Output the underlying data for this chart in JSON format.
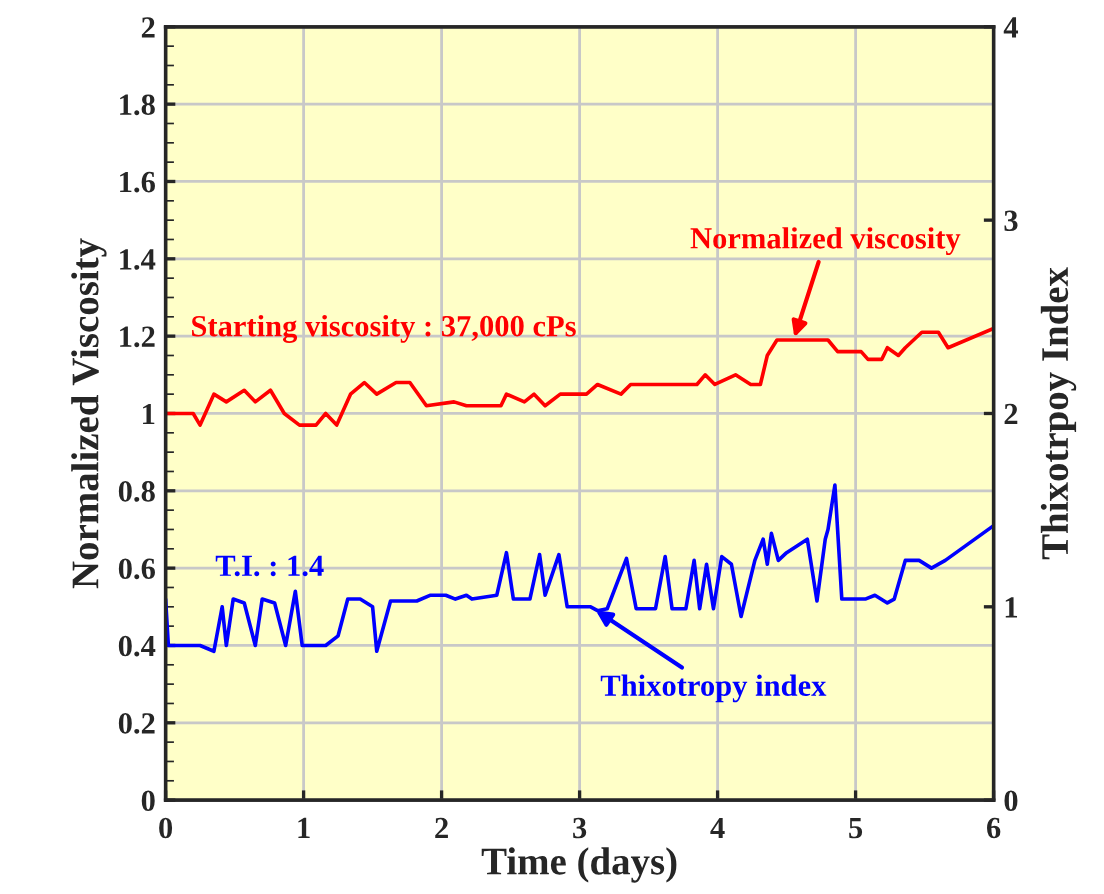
{
  "chart_data": {
    "type": "line",
    "xlabel": "Time (days)",
    "ylabel": "Normalized Viscosity",
    "y2label": "Thixotrpoy Index",
    "xlim": [
      0,
      6
    ],
    "xticks": [
      0,
      1,
      2,
      3,
      4,
      5,
      6
    ],
    "ylim": [
      0,
      2
    ],
    "yticks": [
      0,
      0.2,
      0.4,
      0.6,
      0.8,
      1,
      1.2,
      1.4,
      1.6,
      1.8,
      2
    ],
    "y2lim": [
      0,
      4
    ],
    "y2ticks": [
      0,
      1,
      2,
      3,
      4
    ],
    "grid": true,
    "marker": "none",
    "line_style": "solid",
    "series": [
      {
        "color": "#ff0000",
        "x": [
          0,
          0.2,
          0.25,
          0.35,
          0.44,
          0.57,
          0.65,
          0.76,
          0.86,
          0.97,
          1.09,
          1.16,
          1.24,
          1.34,
          1.44,
          1.53,
          1.67,
          1.77,
          1.89,
          2.09,
          2.18,
          2.43,
          2.47,
          2.6,
          2.67,
          2.75,
          2.86,
          3.05,
          3.13,
          3.3,
          3.37,
          3.85,
          3.91,
          3.98,
          4.13,
          4.24,
          4.31,
          4.36,
          4.43,
          4.8,
          4.87,
          5.04,
          5.09,
          5.19,
          5.23,
          5.31,
          5.36,
          5.48,
          5.6,
          5.67,
          6.0
        ],
        "values": [
          1.0,
          1.0,
          0.97,
          1.05,
          1.03,
          1.06,
          1.03,
          1.06,
          1.0,
          0.97,
          0.97,
          1.0,
          0.97,
          1.05,
          1.08,
          1.05,
          1.08,
          1.08,
          1.02,
          1.03,
          1.02,
          1.02,
          1.05,
          1.03,
          1.05,
          1.02,
          1.05,
          1.05,
          1.075,
          1.05,
          1.075,
          1.075,
          1.1,
          1.075,
          1.1,
          1.075,
          1.075,
          1.15,
          1.19,
          1.19,
          1.16,
          1.16,
          1.14,
          1.14,
          1.17,
          1.15,
          1.17,
          1.21,
          1.21,
          1.17,
          1.22
        ]
      },
      {
        "color": "#0000ff",
        "axis": "y2",
        "x": [
          0,
          0.02,
          0.25,
          0.35,
          0.41,
          0.44,
          0.49,
          0.57,
          0.65,
          0.7,
          0.79,
          0.87,
          0.94,
          0.99,
          1.16,
          1.25,
          1.32,
          1.41,
          1.5,
          1.53,
          1.63,
          1.82,
          1.92,
          2.03,
          2.1,
          2.18,
          2.22,
          2.4,
          2.47,
          2.52,
          2.64,
          2.71,
          2.75,
          2.85,
          2.91,
          3.08,
          3.13,
          3.2,
          3.34,
          3.41,
          3.55,
          3.62,
          3.67,
          3.77,
          3.83,
          3.87,
          3.92,
          3.97,
          4.03,
          4.1,
          4.17,
          4.27,
          4.33,
          4.36,
          4.39,
          4.44,
          4.5,
          4.65,
          4.72,
          4.78,
          4.8,
          4.85,
          4.9,
          5.07,
          5.14,
          5.23,
          5.28,
          5.36,
          5.46,
          5.55,
          5.65,
          6.0
        ],
        "values": [
          1.04,
          0.8,
          0.8,
          0.77,
          1.0,
          0.8,
          1.04,
          1.02,
          0.8,
          1.04,
          1.02,
          0.8,
          1.08,
          0.8,
          0.8,
          0.85,
          1.04,
          1.04,
          1.0,
          0.77,
          1.03,
          1.03,
          1.06,
          1.06,
          1.04,
          1.06,
          1.04,
          1.06,
          1.28,
          1.04,
          1.04,
          1.27,
          1.06,
          1.27,
          1.0,
          1.0,
          0.98,
          0.99,
          1.25,
          0.99,
          0.99,
          1.26,
          0.99,
          0.99,
          1.24,
          0.99,
          1.22,
          0.99,
          1.26,
          1.22,
          0.95,
          1.24,
          1.35,
          1.22,
          1.38,
          1.24,
          1.28,
          1.35,
          1.03,
          1.35,
          1.4,
          1.63,
          1.04,
          1.04,
          1.06,
          1.02,
          1.04,
          1.24,
          1.24,
          1.2,
          1.24,
          1.42
        ]
      }
    ],
    "annotations": [
      "Starting viscosity : 37,000 cPs",
      "T.I. : 1.4",
      {
        "text": "Normalized viscosity",
        "x": 4.55,
        "y": 1.19
      },
      {
        "text": "Thixotropy index",
        "x": 3.1,
        "y": 0.495
      }
    ]
  }
}
